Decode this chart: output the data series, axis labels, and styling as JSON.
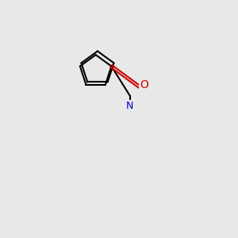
{
  "bg_color": "#e8e8e8",
  "bond_color": "#000000",
  "N_color": "#0000cc",
  "O_color": "#cc0000",
  "lw": 1.5,
  "figsize": [
    3.0,
    3.0
  ],
  "dpi": 100
}
